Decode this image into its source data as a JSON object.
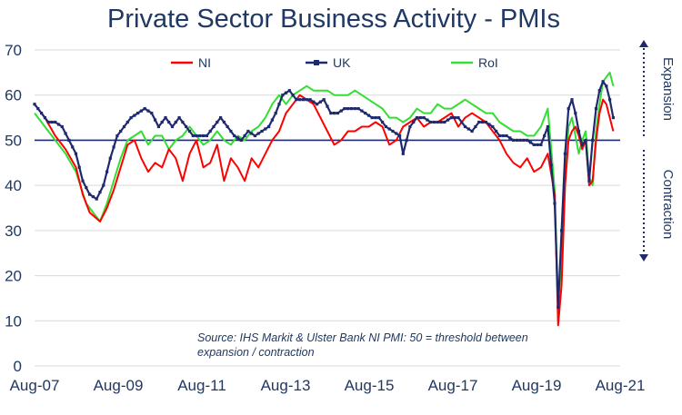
{
  "chart_data": {
    "type": "line",
    "title": "Private Sector Business Activity - PMIs",
    "x_tick_labels": [
      "Aug-07",
      "Aug-09",
      "Aug-11",
      "Aug-13",
      "Aug-15",
      "Aug-17",
      "Aug-19",
      "Aug-21"
    ],
    "xlim": [
      "2007-08",
      "2021-10"
    ],
    "ylim": [
      0,
      70
    ],
    "y_ticks": [
      0,
      10,
      20,
      30,
      40,
      50,
      60,
      70
    ],
    "grid": "horizontal",
    "legend_position": "top",
    "threshold": 50,
    "annotation": {
      "source_line1": "Source: IHS Markit & Ulster Bank NI PMI: 50 = threshold between",
      "source_line2": "expansion / contraction",
      "expansion_label": "Expansion",
      "contraction_label": "Contraction"
    },
    "series": [
      {
        "name": "NI",
        "color": "#ff0000",
        "points": [
          [
            "2007-08",
            58
          ],
          [
            "2007-11",
            55
          ],
          [
            "2008-02",
            51
          ],
          [
            "2008-05",
            48
          ],
          [
            "2008-08",
            44
          ],
          [
            "2008-10",
            38
          ],
          [
            "2008-12",
            34
          ],
          [
            "2009-03",
            32
          ],
          [
            "2009-05",
            35
          ],
          [
            "2009-07",
            39
          ],
          [
            "2009-09",
            44
          ],
          [
            "2009-11",
            49
          ],
          [
            "2010-01",
            50
          ],
          [
            "2010-03",
            46
          ],
          [
            "2010-05",
            43
          ],
          [
            "2010-07",
            45
          ],
          [
            "2010-09",
            44
          ],
          [
            "2010-11",
            48
          ],
          [
            "2011-01",
            46
          ],
          [
            "2011-03",
            41
          ],
          [
            "2011-05",
            47
          ],
          [
            "2011-07",
            50
          ],
          [
            "2011-09",
            44
          ],
          [
            "2011-11",
            45
          ],
          [
            "2012-01",
            49
          ],
          [
            "2012-03",
            41
          ],
          [
            "2012-05",
            46
          ],
          [
            "2012-07",
            44
          ],
          [
            "2012-09",
            41
          ],
          [
            "2012-11",
            46
          ],
          [
            "2013-01",
            44
          ],
          [
            "2013-03",
            47
          ],
          [
            "2013-05",
            50
          ],
          [
            "2013-07",
            52
          ],
          [
            "2013-09",
            56
          ],
          [
            "2013-11",
            58
          ],
          [
            "2014-01",
            60
          ],
          [
            "2014-03",
            59
          ],
          [
            "2014-05",
            58
          ],
          [
            "2014-07",
            55
          ],
          [
            "2014-09",
            52
          ],
          [
            "2014-11",
            49
          ],
          [
            "2015-01",
            50
          ],
          [
            "2015-03",
            52
          ],
          [
            "2015-05",
            52
          ],
          [
            "2015-07",
            53
          ],
          [
            "2015-09",
            53
          ],
          [
            "2015-11",
            54
          ],
          [
            "2016-01",
            53
          ],
          [
            "2016-03",
            49
          ],
          [
            "2016-05",
            50
          ],
          [
            "2016-07",
            53
          ],
          [
            "2016-09",
            54
          ],
          [
            "2016-11",
            55
          ],
          [
            "2017-01",
            53
          ],
          [
            "2017-03",
            54
          ],
          [
            "2017-05",
            54
          ],
          [
            "2017-07",
            55
          ],
          [
            "2017-09",
            56
          ],
          [
            "2017-11",
            53
          ],
          [
            "2018-01",
            55
          ],
          [
            "2018-03",
            56
          ],
          [
            "2018-05",
            55
          ],
          [
            "2018-07",
            54
          ],
          [
            "2018-09",
            52
          ],
          [
            "2018-11",
            50
          ],
          [
            "2019-01",
            47
          ],
          [
            "2019-03",
            45
          ],
          [
            "2019-05",
            44
          ],
          [
            "2019-07",
            46
          ],
          [
            "2019-09",
            43
          ],
          [
            "2019-11",
            44
          ],
          [
            "2020-01",
            47
          ],
          [
            "2020-03",
            38
          ],
          [
            "2020-04",
            9
          ],
          [
            "2020-05",
            18
          ],
          [
            "2020-06",
            40
          ],
          [
            "2020-07",
            50
          ],
          [
            "2020-08",
            52
          ],
          [
            "2020-09",
            53
          ],
          [
            "2020-10",
            51
          ],
          [
            "2020-11",
            48
          ],
          [
            "2020-12",
            50
          ],
          [
            "2021-01",
            40
          ],
          [
            "2021-02",
            41
          ],
          [
            "2021-03",
            50
          ],
          [
            "2021-04",
            56
          ],
          [
            "2021-05",
            59
          ],
          [
            "2021-06",
            58
          ],
          [
            "2021-07",
            55
          ],
          [
            "2021-08",
            52
          ]
        ]
      },
      {
        "name": "UK",
        "color": "#1f2a6e",
        "points": [
          [
            "2007-08",
            58
          ],
          [
            "2007-10",
            56
          ],
          [
            "2007-12",
            54
          ],
          [
            "2008-02",
            54
          ],
          [
            "2008-04",
            53
          ],
          [
            "2008-06",
            50
          ],
          [
            "2008-08",
            47
          ],
          [
            "2008-10",
            41
          ],
          [
            "2008-12",
            38
          ],
          [
            "2009-02",
            37
          ],
          [
            "2009-04",
            40
          ],
          [
            "2009-06",
            46
          ],
          [
            "2009-08",
            51
          ],
          [
            "2009-10",
            53
          ],
          [
            "2009-12",
            55
          ],
          [
            "2010-02",
            56
          ],
          [
            "2010-04",
            57
          ],
          [
            "2010-06",
            56
          ],
          [
            "2010-08",
            53
          ],
          [
            "2010-10",
            55
          ],
          [
            "2010-12",
            53
          ],
          [
            "2011-02",
            55
          ],
          [
            "2011-04",
            53
          ],
          [
            "2011-06",
            51
          ],
          [
            "2011-08",
            51
          ],
          [
            "2011-10",
            51
          ],
          [
            "2011-12",
            53
          ],
          [
            "2012-02",
            55
          ],
          [
            "2012-04",
            53
          ],
          [
            "2012-06",
            51
          ],
          [
            "2012-08",
            50
          ],
          [
            "2012-10",
            52
          ],
          [
            "2012-12",
            51
          ],
          [
            "2013-02",
            52
          ],
          [
            "2013-04",
            53
          ],
          [
            "2013-06",
            56
          ],
          [
            "2013-08",
            60
          ],
          [
            "2013-10",
            61
          ],
          [
            "2013-12",
            59
          ],
          [
            "2014-02",
            59
          ],
          [
            "2014-04",
            59
          ],
          [
            "2014-06",
            58
          ],
          [
            "2014-08",
            59
          ],
          [
            "2014-10",
            56
          ],
          [
            "2014-12",
            56
          ],
          [
            "2015-02",
            57
          ],
          [
            "2015-04",
            57
          ],
          [
            "2015-06",
            57
          ],
          [
            "2015-08",
            56
          ],
          [
            "2015-10",
            55
          ],
          [
            "2015-12",
            55
          ],
          [
            "2016-02",
            53
          ],
          [
            "2016-04",
            52
          ],
          [
            "2016-06",
            51
          ],
          [
            "2016-07",
            47
          ],
          [
            "2016-09",
            53
          ],
          [
            "2016-11",
            55
          ],
          [
            "2017-01",
            55
          ],
          [
            "2017-03",
            54
          ],
          [
            "2017-05",
            54
          ],
          [
            "2017-07",
            54
          ],
          [
            "2017-09",
            55
          ],
          [
            "2017-11",
            55
          ],
          [
            "2018-01",
            53
          ],
          [
            "2018-03",
            52
          ],
          [
            "2018-05",
            54
          ],
          [
            "2018-07",
            54
          ],
          [
            "2018-09",
            53
          ],
          [
            "2018-11",
            51
          ],
          [
            "2019-01",
            51
          ],
          [
            "2019-03",
            50
          ],
          [
            "2019-05",
            50
          ],
          [
            "2019-07",
            50
          ],
          [
            "2019-09",
            49
          ],
          [
            "2019-11",
            49
          ],
          [
            "2020-01",
            53
          ],
          [
            "2020-03",
            36
          ],
          [
            "2020-04",
            13
          ],
          [
            "2020-05",
            30
          ],
          [
            "2020-06",
            47
          ],
          [
            "2020-07",
            57
          ],
          [
            "2020-08",
            59
          ],
          [
            "2020-09",
            56
          ],
          [
            "2020-10",
            52
          ],
          [
            "2020-11",
            49
          ],
          [
            "2020-12",
            50
          ],
          [
            "2021-01",
            41
          ],
          [
            "2021-02",
            50
          ],
          [
            "2021-03",
            57
          ],
          [
            "2021-04",
            61
          ],
          [
            "2021-05",
            63
          ],
          [
            "2021-06",
            62
          ],
          [
            "2021-07",
            59
          ],
          [
            "2021-08",
            55
          ]
        ]
      },
      {
        "name": "RoI",
        "color": "#33dd33",
        "points": [
          [
            "2007-08",
            56
          ],
          [
            "2007-11",
            53
          ],
          [
            "2008-02",
            50
          ],
          [
            "2008-05",
            47
          ],
          [
            "2008-08",
            43
          ],
          [
            "2008-11",
            36
          ],
          [
            "2009-01",
            34
          ],
          [
            "2009-03",
            32
          ],
          [
            "2009-05",
            36
          ],
          [
            "2009-07",
            41
          ],
          [
            "2009-09",
            46
          ],
          [
            "2009-11",
            50
          ],
          [
            "2010-01",
            51
          ],
          [
            "2010-03",
            52
          ],
          [
            "2010-05",
            49
          ],
          [
            "2010-07",
            51
          ],
          [
            "2010-09",
            51
          ],
          [
            "2010-11",
            48
          ],
          [
            "2011-01",
            50
          ],
          [
            "2011-03",
            51
          ],
          [
            "2011-05",
            53
          ],
          [
            "2011-07",
            51
          ],
          [
            "2011-09",
            49
          ],
          [
            "2011-11",
            50
          ],
          [
            "2012-01",
            52
          ],
          [
            "2012-03",
            50
          ],
          [
            "2012-05",
            49
          ],
          [
            "2012-07",
            51
          ],
          [
            "2012-09",
            50
          ],
          [
            "2012-11",
            52
          ],
          [
            "2013-01",
            53
          ],
          [
            "2013-03",
            55
          ],
          [
            "2013-05",
            58
          ],
          [
            "2013-07",
            60
          ],
          [
            "2013-09",
            58
          ],
          [
            "2013-11",
            60
          ],
          [
            "2014-01",
            61
          ],
          [
            "2014-03",
            62
          ],
          [
            "2014-05",
            61
          ],
          [
            "2014-07",
            61
          ],
          [
            "2014-09",
            61
          ],
          [
            "2014-11",
            60
          ],
          [
            "2015-01",
            60
          ],
          [
            "2015-03",
            60
          ],
          [
            "2015-05",
            61
          ],
          [
            "2015-07",
            60
          ],
          [
            "2015-09",
            59
          ],
          [
            "2015-11",
            58
          ],
          [
            "2016-01",
            57
          ],
          [
            "2016-03",
            55
          ],
          [
            "2016-05",
            55
          ],
          [
            "2016-07",
            54
          ],
          [
            "2016-09",
            55
          ],
          [
            "2016-11",
            57
          ],
          [
            "2017-01",
            56
          ],
          [
            "2017-03",
            56
          ],
          [
            "2017-05",
            58
          ],
          [
            "2017-07",
            57
          ],
          [
            "2017-09",
            57
          ],
          [
            "2017-11",
            58
          ],
          [
            "2018-01",
            59
          ],
          [
            "2018-03",
            58
          ],
          [
            "2018-05",
            57
          ],
          [
            "2018-07",
            56
          ],
          [
            "2018-09",
            56
          ],
          [
            "2018-11",
            54
          ],
          [
            "2019-01",
            53
          ],
          [
            "2019-03",
            52
          ],
          [
            "2019-05",
            52
          ],
          [
            "2019-07",
            51
          ],
          [
            "2019-09",
            51
          ],
          [
            "2019-11",
            53
          ],
          [
            "2020-01",
            57
          ],
          [
            "2020-03",
            39
          ],
          [
            "2020-04",
            14
          ],
          [
            "2020-05",
            23
          ],
          [
            "2020-06",
            40
          ],
          [
            "2020-07",
            53
          ],
          [
            "2020-08",
            55
          ],
          [
            "2020-09",
            51
          ],
          [
            "2020-10",
            47
          ],
          [
            "2020-11",
            50
          ],
          [
            "2020-12",
            52
          ],
          [
            "2021-01",
            42
          ],
          [
            "2021-02",
            40
          ],
          [
            "2021-03",
            52
          ],
          [
            "2021-04",
            58
          ],
          [
            "2021-05",
            63
          ],
          [
            "2021-06",
            64
          ],
          [
            "2021-07",
            65
          ],
          [
            "2021-08",
            62
          ]
        ]
      }
    ]
  }
}
